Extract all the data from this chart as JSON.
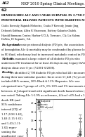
{
  "title_header_left": "A62",
  "title_header_right": "NKF 2010 Spring Clinical Meetings Abstracts",
  "abstract_number": "62",
  "abstract_title_lines": [
    "HEMOGLOBIN A1C AND 5-YEAR SURVIVAL IN 2,798 CHRONIC",
    "PERITONEAL DIALYSIS PATIENTS WITH DIABETES MELLITUS"
  ],
  "author_lines": [
    "Csaba Kovesdy, Rajnish Mehrotra, Csaba P Kovesdy, Jennie Jing,",
    "Deborah Koffman, Allen R Nissenson, Battery Kalantar-Zadeh.",
    "Harold Simmons Center, Harbor-UCLA, Torrance, CA; Liz Salem;",
    "DaVita, El Segundo, CA."
  ],
  "full_width_lines": [
    [
      "Background.",
      " In chronic peritoneal dialysis (PD) pts, the association"
    ],
    [
      "",
      "of hemoglobin A1c & mortality may be confounded by glucose loading"
    ],
    [
      "",
      "in PD fluid, which may lead to increased metabolic control in PD."
    ],
    [
      "Methods.",
      " We examined a large cohort of all diabetic PD pts who"
    ],
    [
      "",
      "underwent PD treatment for at least 45 days in any Legacy DaVita"
    ],
    [
      "",
      "dialysis clinic over 8 yrs (7/2001-6/2008)."
    ],
    [
      "Results.",
      " We identified 2,798 diabetic PD pts who had A1c measures"
    ],
    [
      "",
      "during their non-calendar quarter; there were 51,441 (%) yrs old and"
    ],
    [
      "",
      "included 44% women, 26% Black & 15% Hispanics. A1c was"
    ],
    [
      "",
      "categorized into 7 groups of <6%, 6%-10% and 1% increments in"
    ],
    [
      "",
      "between. A J-shaped trend with significant death hazard ratios (HR)"
    ],
    [
      "",
      "was noted. Taking A1c 5-5.9% as reference, A level <6% had a 5 yr"
    ]
  ],
  "left_col_lines": [
    "death HR (and",
    "95% confidence",
    "interval [CI]) of",
    "1.17 (0.96-1.42),",
    "1.40 (1.15-1.61)",
    "and 1.43 (1.11-",
    "1.82) repre-",
    "senting the",
    "unadjusted, case-",
    "mix and",
    "additional",
    "malnutrition-",
    "inflammation-",
    "complex"
  ],
  "post_figure_lines": [
    [
      "syndrome (MICS) adjusted hazard ratio (see figure)."
    ],
    [
      "Conclusions.",
      " In this large national cohort of diabetic PD patients, a"
    ],
    [
      "hemoglobin A1c >10% appears associated with relative risk of death or"
    ],
    [
      "1.41 compared to those with a A1c of 5-6%. Clinical trials to"
    ],
    [
      "evaluate the benefit of tighter glycemic control are need in pd pts"
    ]
  ],
  "bold_italic_words": [
    "Background.",
    "Methods.",
    "Results.",
    "Conclusions."
  ],
  "figure": {
    "x_labels": [
      "<6",
      "6-6.9",
      "7-7.9",
      "8-8.9",
      "9-9.9",
      ">=10"
    ],
    "x_positions": [
      0,
      1,
      2,
      3,
      4,
      5
    ],
    "unadjusted_hr": [
      1.17,
      1.0,
      0.97,
      0.95,
      0.98,
      1.28
    ],
    "casemix_hr": [
      1.4,
      1.0,
      0.96,
      0.93,
      0.95,
      1.35
    ],
    "mics_hr": [
      1.43,
      1.0,
      0.95,
      0.92,
      0.95,
      1.41
    ],
    "unadjusted_ci_low": [
      0.96,
      0.88,
      0.85,
      0.83,
      0.85,
      1.05
    ],
    "unadjusted_ci_high": [
      1.42,
      1.14,
      1.11,
      1.09,
      1.13,
      1.58
    ],
    "casemix_ci_low": [
      1.15,
      0.88,
      0.84,
      0.81,
      0.82,
      1.1
    ],
    "casemix_ci_high": [
      1.61,
      1.14,
      1.1,
      1.07,
      1.1,
      1.65
    ],
    "mics_ci_low": [
      1.11,
      0.87,
      0.83,
      0.8,
      0.82,
      1.14
    ],
    "mics_ci_high": [
      1.82,
      1.15,
      1.09,
      1.06,
      1.1,
      1.74
    ],
    "xlabel": "Hemoglobin A1c (%)",
    "ylabel": "Hazard Ratio",
    "ylim": [
      0.5,
      2.1
    ],
    "reference_line": 1.0,
    "legend_labels": [
      "Unadjusted",
      "Case-mix",
      "MICS adjusted"
    ],
    "line_colors": [
      "#444444",
      "#777777",
      "#aaaaaa"
    ],
    "line_styles": [
      "-",
      "--",
      ":"
    ],
    "marker_styles": [
      "s",
      "o",
      "^"
    ]
  }
}
